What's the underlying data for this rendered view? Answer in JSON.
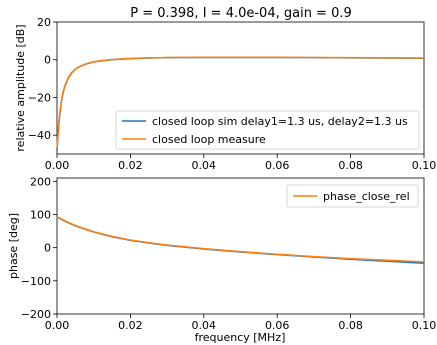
{
  "chart_data": [
    {
      "type": "line",
      "title": "P = 0.398, I = 4.0e-04, gain = 0.9",
      "xlabel": "",
      "ylabel": "relative amplitude [dB]",
      "xlim": [
        0.0,
        0.1
      ],
      "ylim": [
        -50,
        20
      ],
      "xticks": [
        "0.00",
        "0.02",
        "0.04",
        "0.06",
        "0.08",
        "0.10"
      ],
      "yticks": [
        "20",
        "0",
        "−20",
        "−40"
      ],
      "legend_position": "lower-right",
      "series": [
        {
          "name": "closed loop sim delay1=1.3 us, delay2=1.3 us",
          "color": "#1f77b4",
          "x": [
            0.0,
            0.0005,
            0.001,
            0.0015,
            0.002,
            0.003,
            0.004,
            0.005,
            0.006,
            0.008,
            0.01,
            0.012,
            0.015,
            0.02,
            0.025,
            0.03,
            0.04,
            0.05,
            0.06,
            0.07,
            0.08,
            0.09,
            0.1
          ],
          "y": [
            -48,
            -34,
            -25,
            -19,
            -15,
            -10,
            -7,
            -5,
            -3.8,
            -2.2,
            -1.2,
            -0.6,
            0.0,
            0.6,
            0.9,
            1.1,
            1.2,
            1.2,
            1.2,
            1.1,
            1.0,
            0.9,
            0.8
          ]
        },
        {
          "name": "closed loop measure",
          "color": "#ff7f0e",
          "x": [
            0.0,
            0.0005,
            0.001,
            0.0015,
            0.002,
            0.003,
            0.004,
            0.005,
            0.006,
            0.008,
            0.01,
            0.012,
            0.015,
            0.02,
            0.025,
            0.03,
            0.04,
            0.05,
            0.06,
            0.07,
            0.08,
            0.09,
            0.1
          ],
          "y": [
            -47,
            -33,
            -24.5,
            -18.5,
            -14.5,
            -9.8,
            -6.8,
            -4.9,
            -3.7,
            -2.1,
            -1.1,
            -0.5,
            0.1,
            0.7,
            1.0,
            1.2,
            1.3,
            1.3,
            1.3,
            1.2,
            1.1,
            1.0,
            0.9
          ]
        }
      ]
    },
    {
      "type": "line",
      "title": "",
      "xlabel": "frequency [MHz]",
      "ylabel": "phase [deg]",
      "xlim": [
        0.0,
        0.1
      ],
      "ylim": [
        -200,
        210
      ],
      "xticks": [
        "0.00",
        "0.02",
        "0.04",
        "0.06",
        "0.08",
        "0.10"
      ],
      "yticks": [
        "200",
        "100",
        "0",
        "−100",
        "−200"
      ],
      "legend_position": "upper-right",
      "series": [
        {
          "name": "",
          "color": "#1f77b4",
          "x": [
            0.0,
            0.0025,
            0.005,
            0.0075,
            0.01,
            0.015,
            0.02,
            0.025,
            0.03,
            0.04,
            0.05,
            0.06,
            0.07,
            0.08,
            0.09,
            0.1
          ],
          "y": [
            92,
            78,
            66,
            56,
            47,
            33,
            22,
            14,
            7,
            -4,
            -13,
            -21,
            -28,
            -35,
            -41,
            -47
          ]
        },
        {
          "name": "phase_close_rel",
          "color": "#ff7f0e",
          "x": [
            0.0,
            0.0025,
            0.005,
            0.0075,
            0.01,
            0.015,
            0.02,
            0.025,
            0.03,
            0.04,
            0.05,
            0.06,
            0.07,
            0.08,
            0.09,
            0.1
          ],
          "y": [
            93,
            79,
            67,
            57,
            48,
            34,
            23,
            15,
            8,
            -3,
            -12,
            -20,
            -27,
            -33,
            -38,
            -43
          ]
        }
      ]
    }
  ]
}
